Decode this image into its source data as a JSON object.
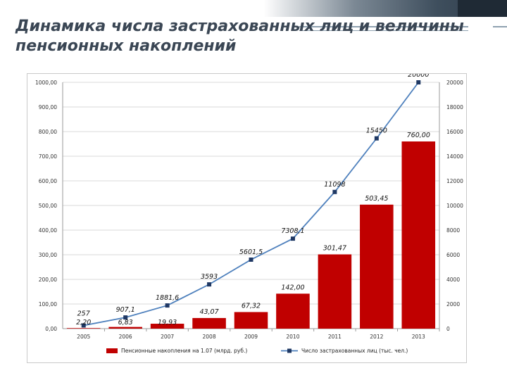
{
  "slide": {
    "title_line1": "Динамика числа застрахованных лиц и величины",
    "title_line2": "пенсионных накоплений"
  },
  "colors": {
    "bar": "#c00000",
    "line": "#4f81bd",
    "marker": "#1f3864",
    "grid": "#d9d9d9",
    "title": "#3a4654"
  },
  "chart_data": {
    "type": "bar",
    "title": "",
    "categories": [
      "2005",
      "2006",
      "2007",
      "2008",
      "2009",
      "2010",
      "2011",
      "2012",
      "2013"
    ],
    "y_left": {
      "ylim": [
        0,
        1000
      ],
      "ticks": [
        "0,00",
        "100,00",
        "200,00",
        "300,00",
        "400,00",
        "500,00",
        "600,00",
        "700,00",
        "800,00",
        "900,00",
        "1000,00"
      ]
    },
    "y_right": {
      "ylim": [
        0,
        20000
      ],
      "ticks": [
        "0",
        "2000",
        "4000",
        "6000",
        "8000",
        "10000",
        "12000",
        "14000",
        "16000",
        "18000",
        "20000"
      ]
    },
    "grid": true,
    "legend_position": "bottom",
    "series": [
      {
        "name": "Пенсионные накопления на 1.07 (млрд. руб.)",
        "type": "bar",
        "axis": "left",
        "values": [
          2.2,
          6.83,
          19.93,
          43.07,
          67.32,
          142.0,
          301.47,
          503.45,
          760.0
        ],
        "labels": [
          "2,20",
          "6,83",
          "19,93",
          "43,07",
          "67,32",
          "142,00",
          "301,47",
          "503,45",
          "760,00"
        ]
      },
      {
        "name": "Число застрахованных лиц (тыс. чел.)",
        "type": "line",
        "axis": "right",
        "values": [
          257,
          907.1,
          1881.6,
          3593,
          5601.5,
          7308.1,
          11098,
          15450,
          20000
        ],
        "labels": [
          "257",
          "907,1",
          "1881,6",
          "3593",
          "5601,5",
          "7308,1",
          "11098",
          "15450",
          "20000"
        ]
      }
    ]
  }
}
